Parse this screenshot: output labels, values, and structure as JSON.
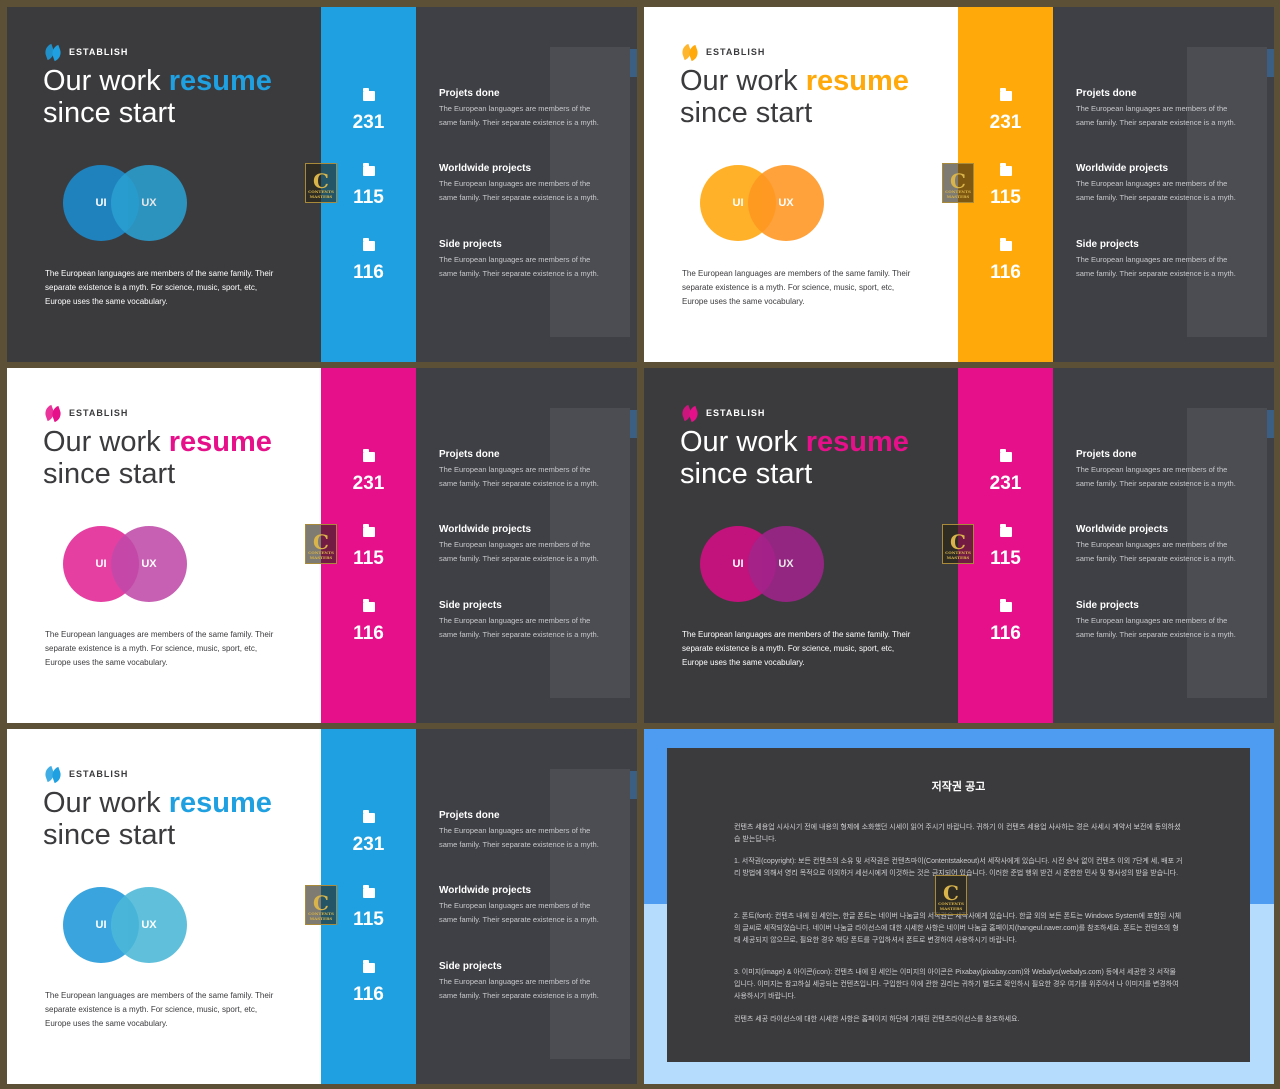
{
  "slides": [
    {
      "theme": "dark",
      "accent": "#1fa0e0",
      "circle1": "#1f82bd",
      "circle2": "#2a9fd0"
    },
    {
      "theme": "light",
      "accent": "#ffa90a",
      "circle1": "#ffb12a",
      "circle2": "#ff9620"
    },
    {
      "theme": "light",
      "accent": "#e6108a",
      "circle1": "#e63fa2",
      "circle2": "#c04aa8"
    },
    {
      "theme": "dark",
      "accent": "#e6108a",
      "circle1": "#c1137b",
      "circle2": "#a0248a"
    },
    {
      "theme": "light",
      "accent": "#1fa0e0",
      "circle1": "#3aa4de",
      "circle2": "#4bb8d8"
    }
  ],
  "logo_text": "ESTABLISH",
  "title_pre": "Our work ",
  "title_hl": "resume",
  "title_post": "since start",
  "venn": {
    "left": "UI",
    "right": "UX"
  },
  "description": "The European languages are members of the same family. Their separate existence is a myth. For science, music, sport, etc, Europe uses the same vocabulary.",
  "stats": [
    "231",
    "115",
    "116"
  ],
  "items": [
    {
      "title": "Projets done",
      "body": "The European languages are members of the same family. Their separate existence is a myth."
    },
    {
      "title": "Worldwide projects",
      "body": "The European languages are members of the same family. Their separate existence is a myth."
    },
    {
      "title": "Side projects",
      "body": "The European languages are members of the same family. Their separate existence is a myth."
    }
  ],
  "watermark": {
    "letter": "C",
    "caption": "CONTENTS MASTERS"
  },
  "notice": {
    "title": "저작권 공고",
    "paragraphs": [
      "컨텐츠 세용업 시사시기 전에 내용의 형제에 소화했던 시세이 읽어 주시기 바랍니다. 귀하기 이 컨텐츠 세용업 사사하는 경은 사세시 계약서 보전에 동의하셨습 받는답니다.",
      "1. 서작권(copyright): 보든 컨텐츠의 소유 및 서작권은 컨텐츠마이(Contentstakeout)서 세작사에게 있습니다. 시전 승낙 없이 컨텐츠 이외 7단계 세, 배포 거리 방법에 의해서 영리 목적으로 이외하거 세선시에게 이것하는 것은 금지되어 있습니다. 이러한 준법 행위 받건 시 준한한 민사 및 형사성의 받을 받습니다.",
      "2. 폰트(font): 컨텐츠 내에 된 세인는, 한글 폰트는 네이버 나눔글의 서작권은 세작사에게 있습니다. 한글 외의 보든 폰트는 Windows System에 포함된 시체의 글씨로 세작되었습니다. 네이버 나눔글 라이선스에 대한 시세한 사항은 네이버 나눔글 홈페이지(hangeul.naver.com)를 참조하세요. 폰트는 컨텐츠의 형태 세공되지 않으므로, 필요한 경우 해당 폰트를 구입하셔서 폰트로 변경하여 사용하시기 바랍니다.",
      "3. 이미지(image) & 아이콘(icon): 컨텐츠 내에 된 세인는 이미지의 아이콘은 Pixabay(pixabay.com)와 Webalys(webalys.com) 등에서 세공한 것 서작물 입니다. 이미지는 참고하실 세공되는 컨텐츠입니다. 구입한다 이에 관한 권리는 귀하기 별도로 확인하시 필요한 경우 여기를 위주아서 나 이미지를 변경하여 사용하시기 바랍니다.",
      "컨텐츠 세공 라이선스에 대한 시세한 사항은 홈페이지 하단에 기재된 컨텐츠라이선스를 참조하세요."
    ]
  }
}
